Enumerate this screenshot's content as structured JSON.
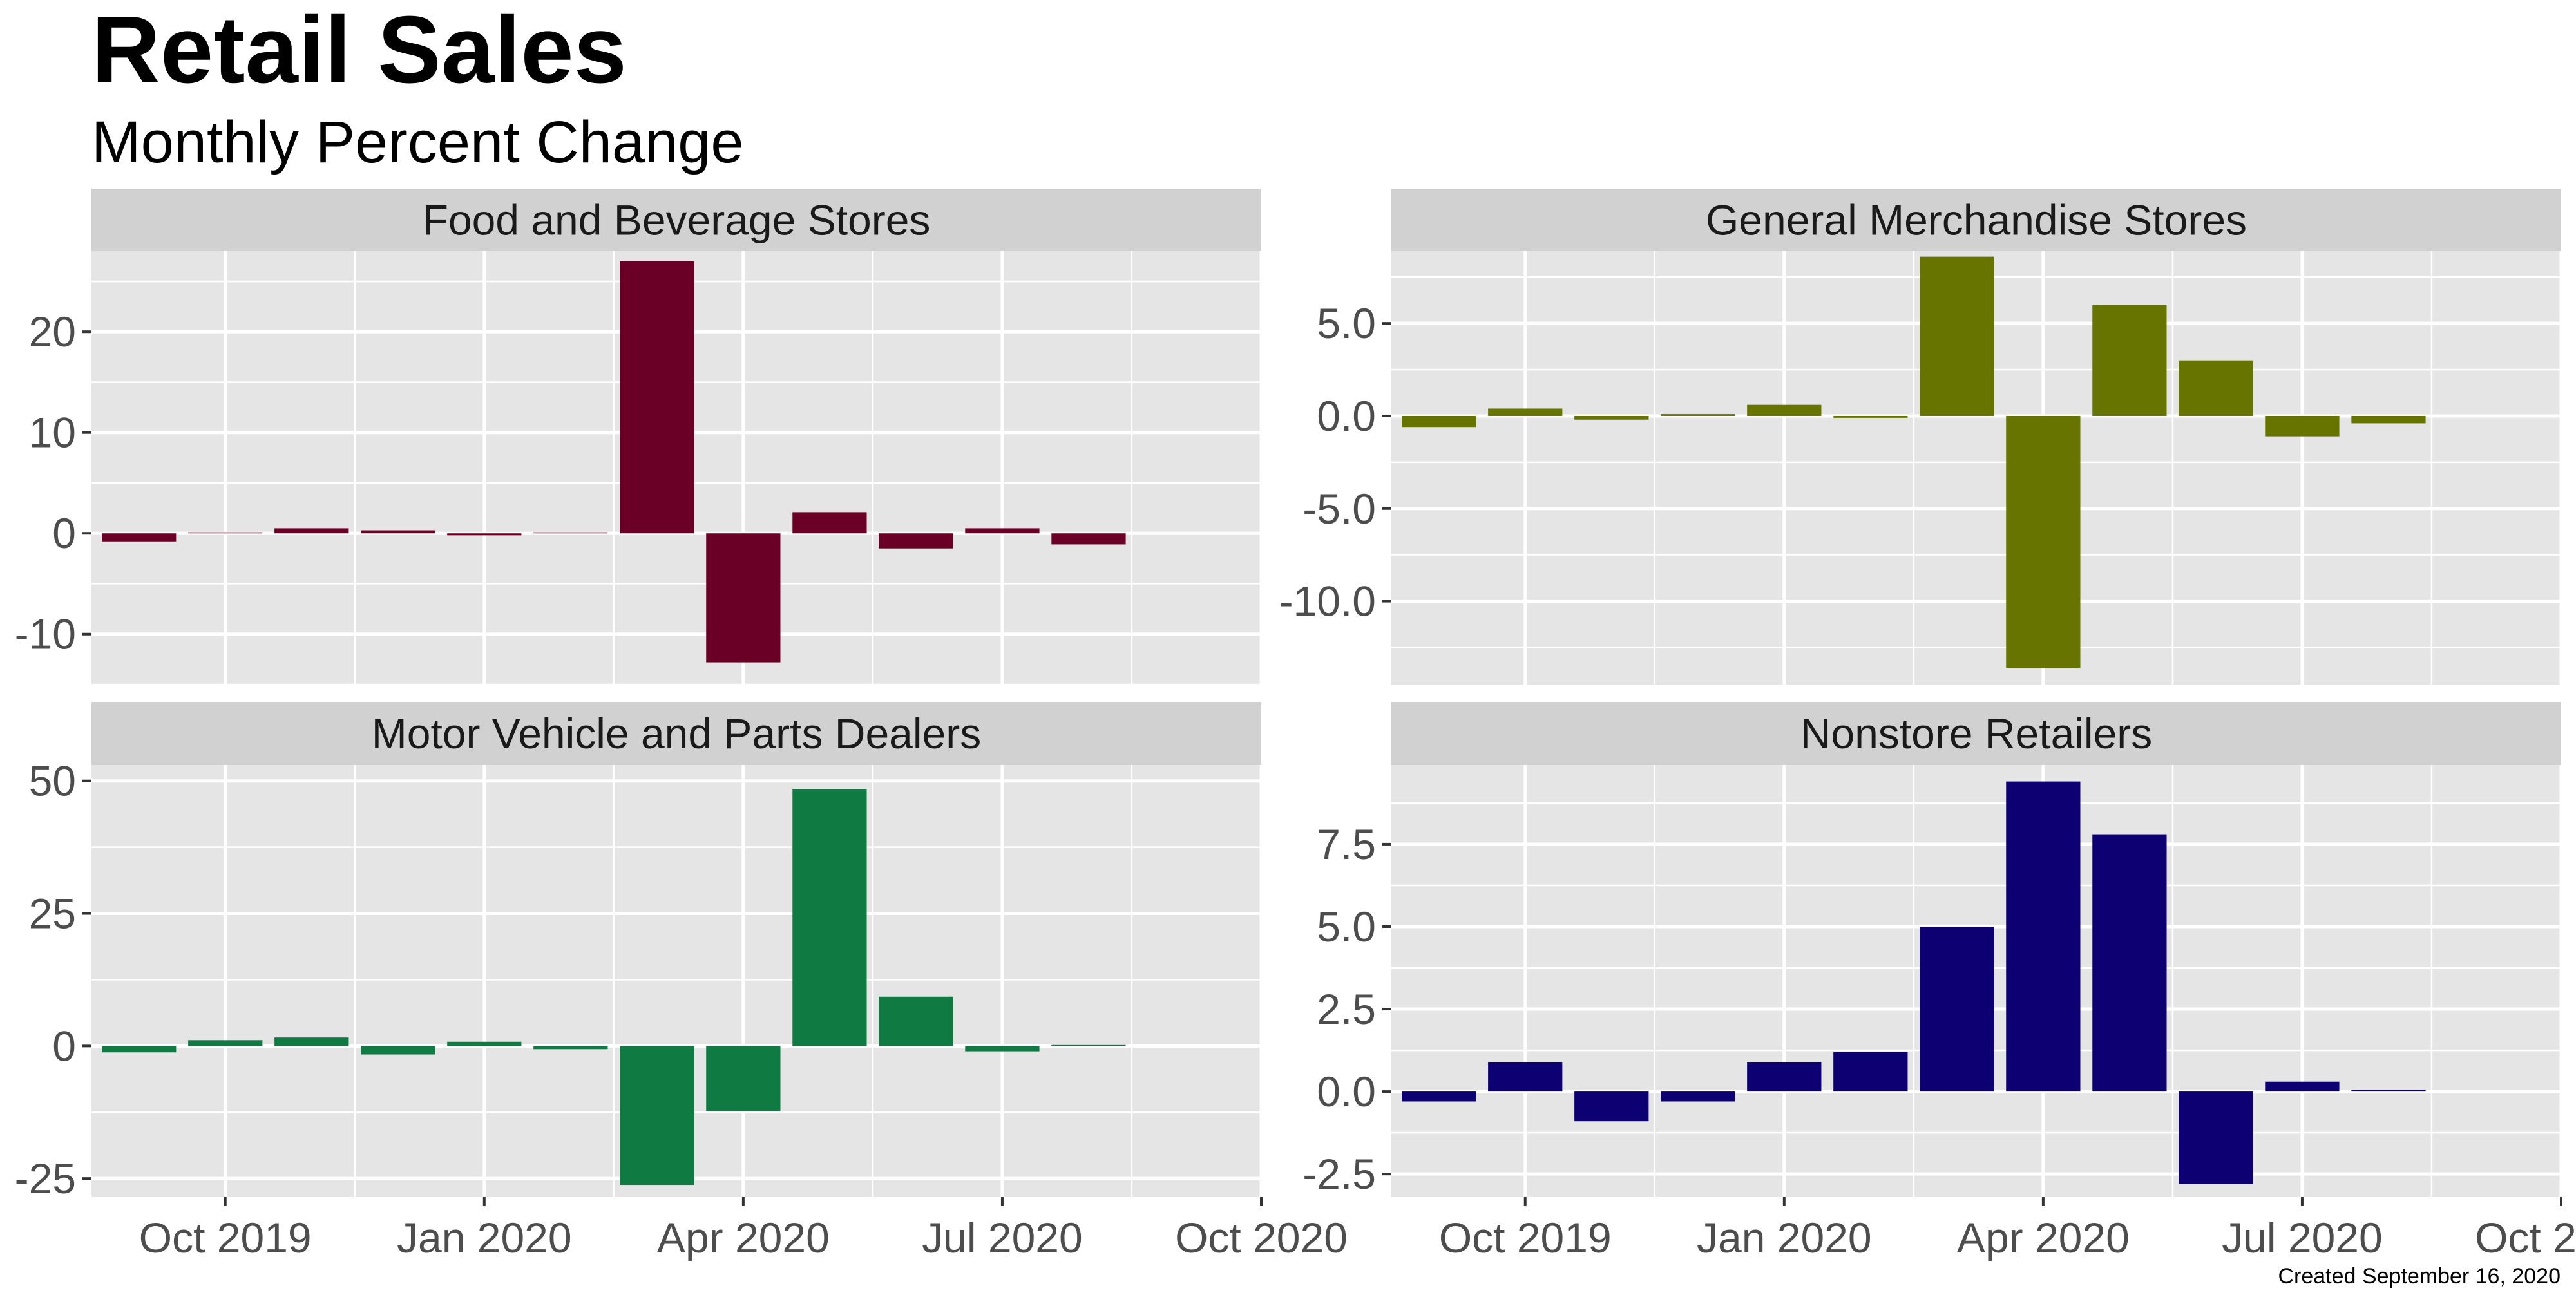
{
  "title": "Retail Sales",
  "subtitle": "Monthly Percent Change",
  "caption": "Created September 16, 2020",
  "colors": {
    "panel_bg": "#e5e5e5",
    "strip_bg": "#d1d1d1",
    "grid": "#ffffff"
  },
  "chart_data": [
    {
      "type": "bar",
      "title": "Food and Beverage Stores",
      "color": "#6b0026",
      "x": [
        "2019-09",
        "2019-10",
        "2019-11",
        "2019-12",
        "2020-01",
        "2020-02",
        "2020-03",
        "2020-04",
        "2020-05",
        "2020-06",
        "2020-07",
        "2020-08"
      ],
      "values": [
        -0.8,
        0.1,
        0.5,
        0.3,
        -0.2,
        0.1,
        27.0,
        -12.8,
        2.1,
        -1.5,
        0.5,
        -1.1
      ],
      "ylim": [
        -15,
        28
      ],
      "yticks": [
        -10,
        0,
        10,
        20
      ],
      "ytick_labels": [
        "-10",
        "0",
        "10",
        "20"
      ]
    },
    {
      "type": "bar",
      "title": "General Merchandise Stores",
      "color": "#677500",
      "x": [
        "2019-09",
        "2019-10",
        "2019-11",
        "2019-12",
        "2020-01",
        "2020-02",
        "2020-03",
        "2020-04",
        "2020-05",
        "2020-06",
        "2020-07",
        "2020-08"
      ],
      "values": [
        -0.6,
        0.4,
        -0.2,
        0.1,
        0.6,
        -0.1,
        8.6,
        -13.6,
        6.0,
        3.0,
        -1.1,
        -0.4
      ],
      "ylim": [
        -14.5,
        8.9
      ],
      "yticks": [
        -10,
        -5,
        0,
        5
      ],
      "ytick_labels": [
        "-10.0",
        "-5.0",
        "0.0",
        "5.0"
      ]
    },
    {
      "type": "bar",
      "title": "Motor Vehicle and Parts Dealers",
      "color": "#107a43",
      "x": [
        "2019-09",
        "2019-10",
        "2019-11",
        "2019-12",
        "2020-01",
        "2020-02",
        "2020-03",
        "2020-04",
        "2020-05",
        "2020-06",
        "2020-07",
        "2020-08"
      ],
      "values": [
        -1.2,
        1.1,
        1.6,
        -1.6,
        0.8,
        -0.6,
        -26.2,
        -12.3,
        48.5,
        9.3,
        -1.0,
        0.2
      ],
      "ylim": [
        -28.5,
        53
      ],
      "yticks": [
        -25,
        0,
        25,
        50
      ],
      "ytick_labels": [
        "-25",
        "0",
        "25",
        "50"
      ]
    },
    {
      "type": "bar",
      "title": "Nonstore Retailers",
      "color": "#0d0073",
      "x": [
        "2019-09",
        "2019-10",
        "2019-11",
        "2019-12",
        "2020-01",
        "2020-02",
        "2020-03",
        "2020-04",
        "2020-05",
        "2020-06",
        "2020-07",
        "2020-08"
      ],
      "values": [
        -0.3,
        0.9,
        -0.9,
        -0.3,
        0.9,
        1.2,
        5.0,
        9.4,
        7.8,
        -2.8,
        0.3,
        0.05
      ],
      "ylim": [
        -3.2,
        9.9
      ],
      "yticks": [
        -2.5,
        0,
        2.5,
        5,
        7.5
      ],
      "ytick_labels": [
        "-2.5",
        "0.0",
        "2.5",
        "5.0",
        "7.5"
      ]
    }
  ],
  "x_axis": {
    "ticks": [
      "2019-10",
      "2020-01",
      "2020-04",
      "2020-07",
      "2020-10"
    ],
    "tick_labels": [
      "Oct 2019",
      "Jan 2020",
      "Apr 2020",
      "Jul 2020",
      "Oct 2020"
    ],
    "minor_ticks": [
      "2019-11.5",
      "2020-02.5",
      "2020-05.5",
      "2020-08.5"
    ]
  }
}
